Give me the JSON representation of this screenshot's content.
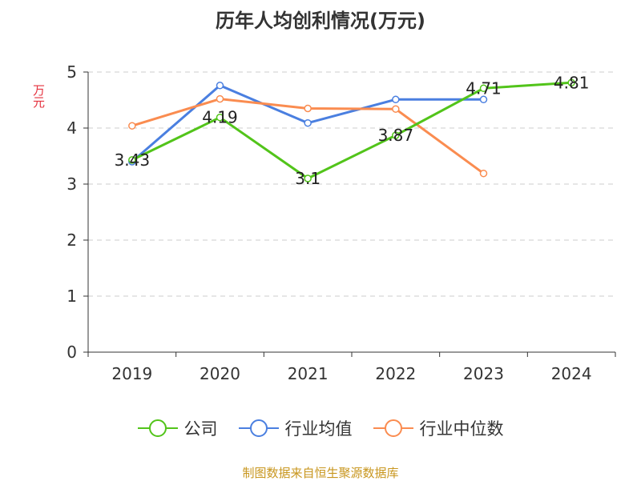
{
  "chart_data": {
    "type": "line",
    "title": "历年人均创利情况(万元)",
    "ylabel": "万元",
    "categories": [
      "2019",
      "2020",
      "2021",
      "2022",
      "2023",
      "2024"
    ],
    "ylim": [
      0,
      5
    ],
    "yticks": [
      0,
      1,
      2,
      3,
      4,
      5
    ],
    "grid": true,
    "legend": "bottom",
    "series": [
      {
        "name": "公司",
        "color": "#52c41a",
        "values": [
          3.43,
          4.19,
          3.1,
          3.87,
          4.71,
          4.81
        ],
        "labels": [
          "3.43",
          "4.19",
          "3.1",
          "3.87",
          "4.71",
          "4.81"
        ]
      },
      {
        "name": "行业均值",
        "color": "#4a7fe0",
        "values": [
          3.4,
          4.76,
          4.09,
          4.51,
          4.51,
          null
        ]
      },
      {
        "name": "行业中位数",
        "color": "#fa8c50",
        "values": [
          4.04,
          4.52,
          4.35,
          4.34,
          3.19,
          null
        ]
      }
    ]
  },
  "source": "制图数据来自恒生聚源数据库"
}
